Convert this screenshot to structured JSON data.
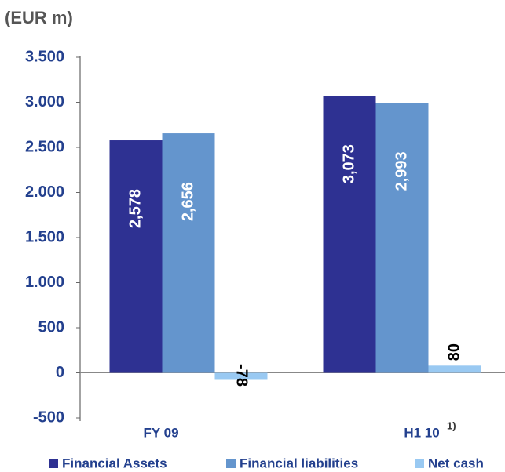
{
  "chart_data": {
    "type": "bar",
    "title": "(EUR m)",
    "categories": [
      "FY 09",
      "H1 10"
    ],
    "footnote_marker": "1)",
    "series": [
      {
        "name": "Financial Assets",
        "color": "#2e3192",
        "values": [
          2578,
          3073
        ],
        "value_labels": [
          "2,578",
          "3,073"
        ]
      },
      {
        "name": "Financial liabilities",
        "color": "#6495cd",
        "values": [
          2656,
          2993
        ],
        "value_labels": [
          "2,656",
          "2,993"
        ]
      },
      {
        "name": "Net cash",
        "color": "#99c9f2",
        "values": [
          -78,
          80
        ]
      }
    ],
    "ylim": [
      -500,
      3500
    ],
    "yticks": [
      -500,
      0,
      500,
      {
        "value": 1000,
        "label": "1.000"
      },
      {
        "value": 1500,
        "label": "1.500"
      },
      {
        "value": 2000,
        "label": "2.000"
      },
      {
        "value": 2500,
        "label": "2.500"
      },
      {
        "value": 3000,
        "label": "3.000"
      },
      {
        "value": 3500,
        "label": "3.500"
      }
    ],
    "grid": false,
    "legend": "bottom"
  }
}
